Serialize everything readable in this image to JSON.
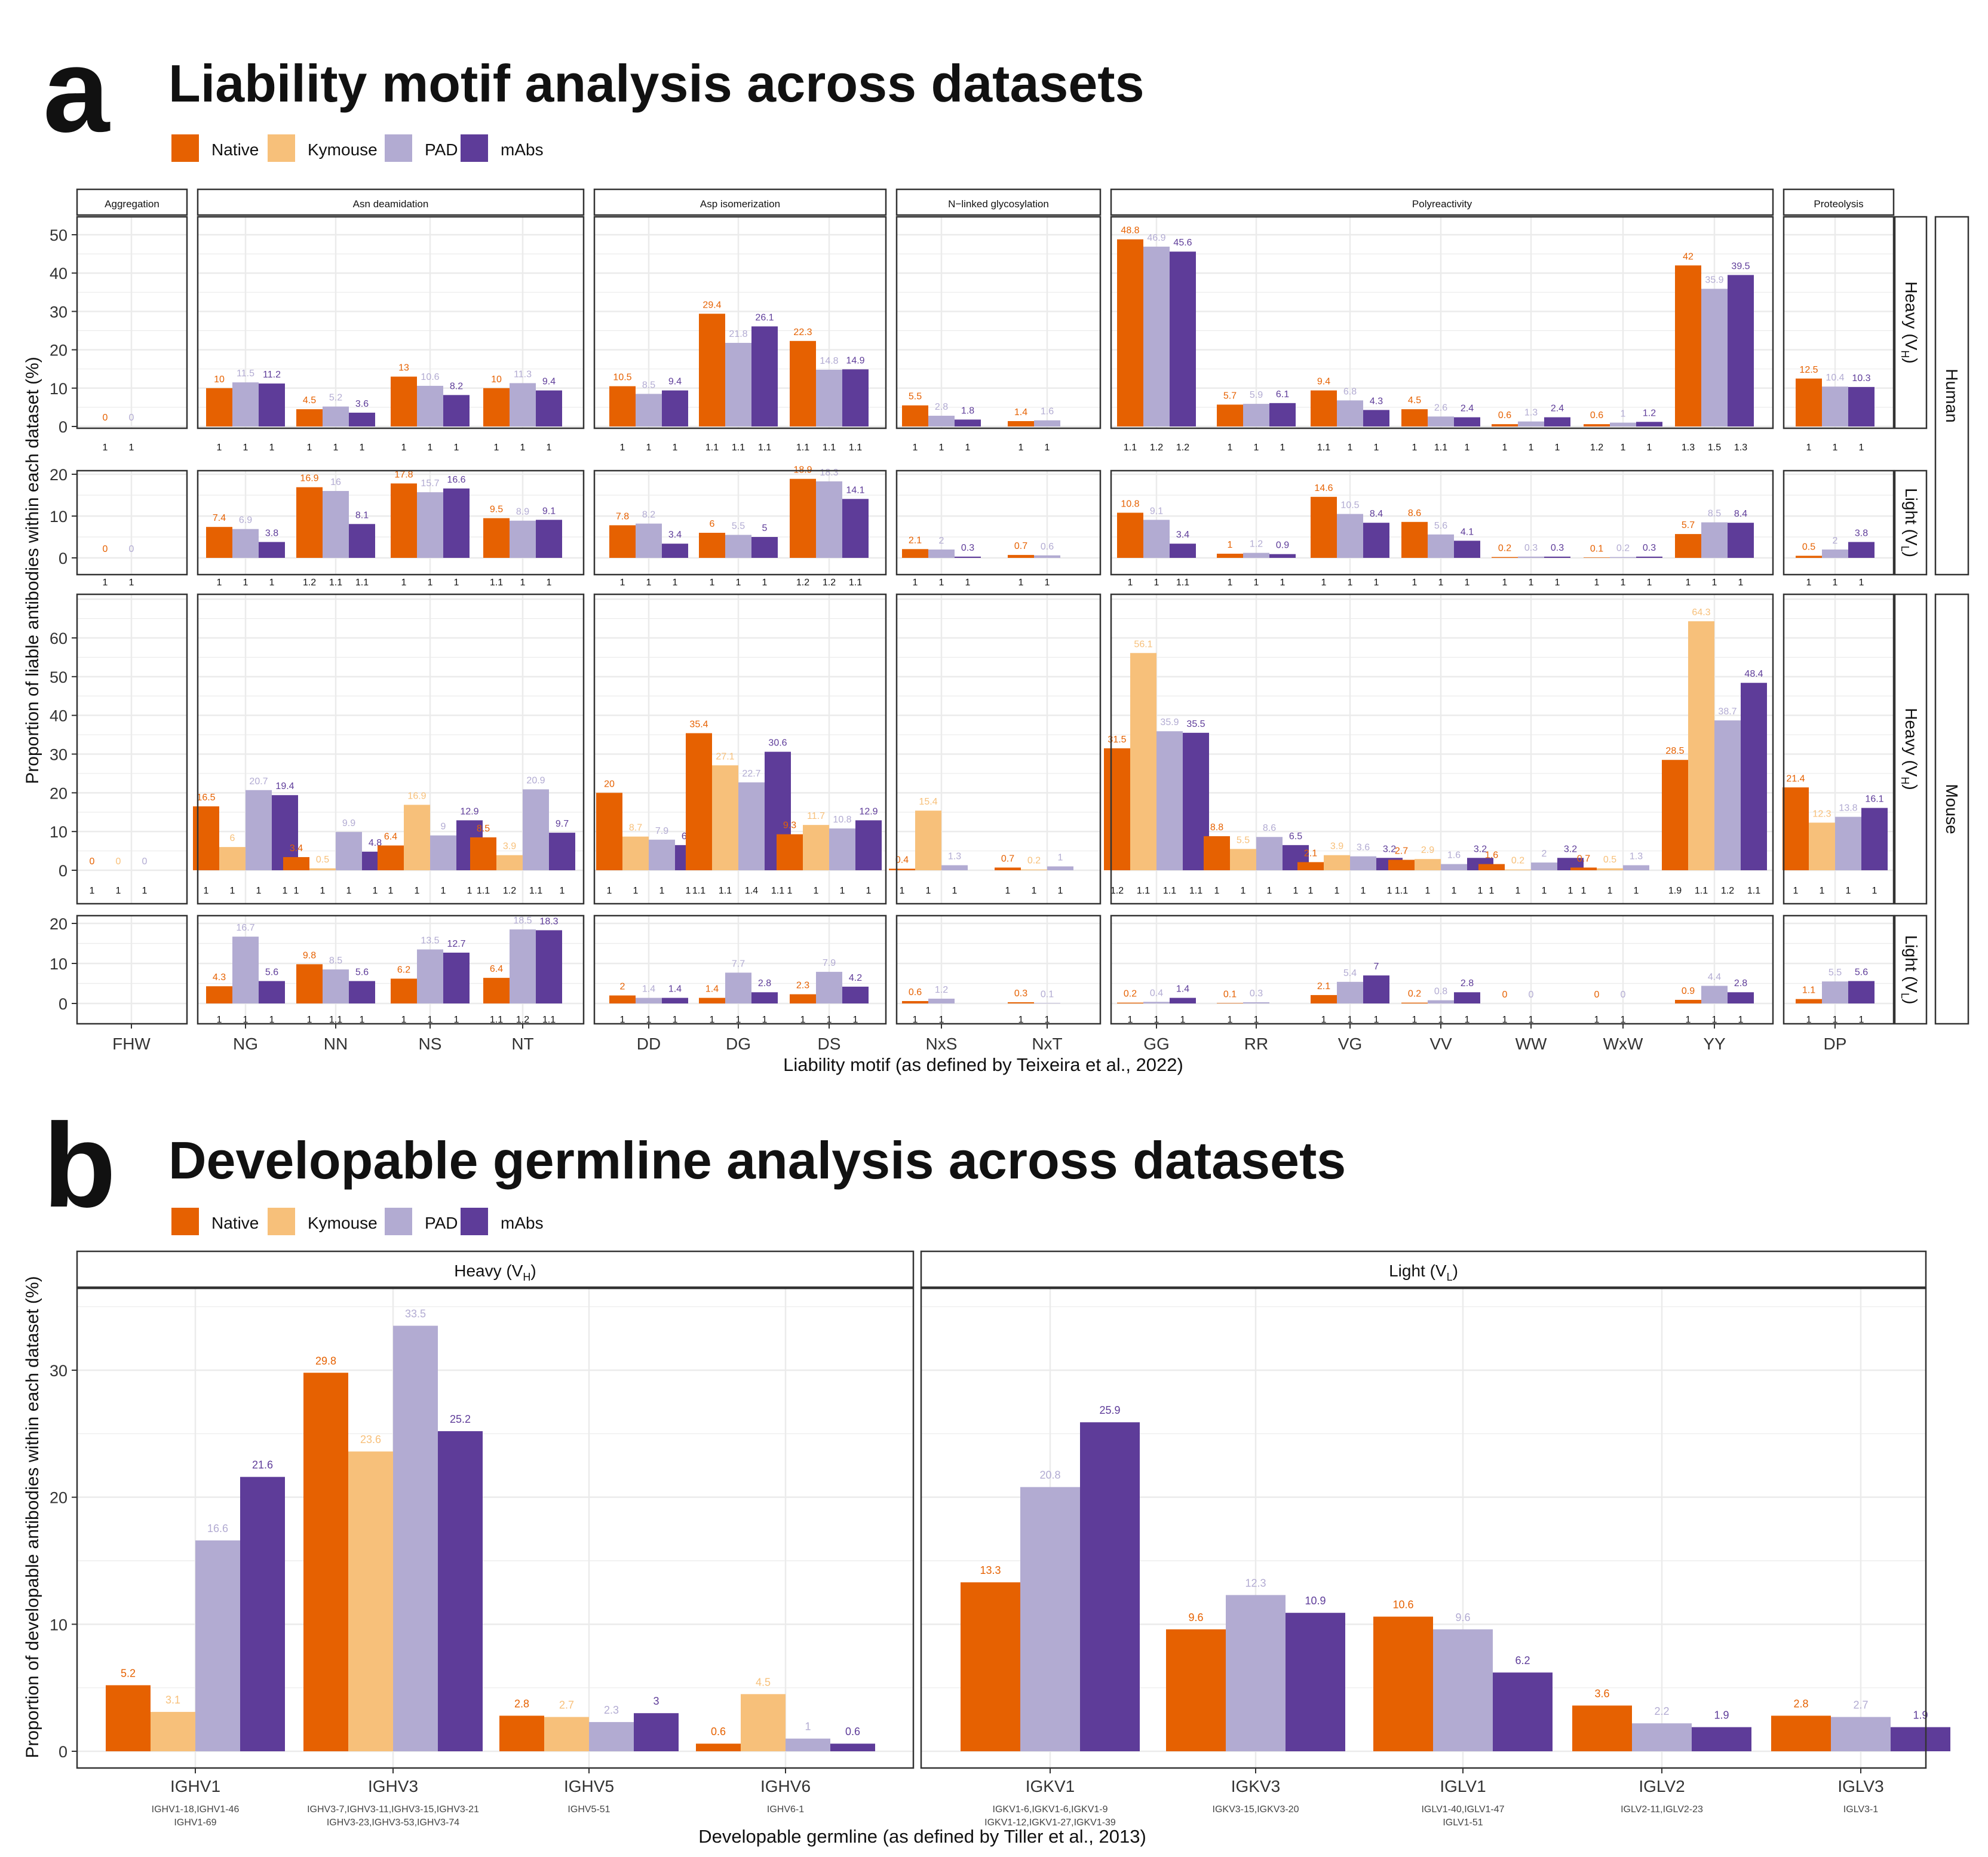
{
  "colors": {
    "native": "#E66101",
    "kymouse": "#F7C07A",
    "pad": "#B2ABD2",
    "mabs": "#5E3C99",
    "grid": "#EBEBEB",
    "border": "#333333",
    "text": "#111111"
  },
  "panel_a": {
    "letter": "a",
    "title": "Liability motif analysis across datasets",
    "legend": [
      "Native",
      "Kymouse",
      "PAD",
      "mAbs"
    ],
    "ylabel": "Proportion of liable antibodies within each dataset (%)",
    "xlabel": "Liability motif (as defined by Teixeira et al., 2022)",
    "strip_labels": [
      "Aggregation",
      "Asn deamidation",
      "Asp isomerization",
      "N−linked glycosylation",
      "Polyreactivity",
      "Proteolysis"
    ],
    "row_strip_labels": [
      "Heavy (V",
      "Light (V",
      "Heavy (V",
      "Light (V"
    ],
    "row_strip_subs": [
      "H",
      "L",
      "H",
      "L"
    ],
    "species_labels": [
      "Human",
      "Mouse"
    ],
    "yticks": {
      "human_heavy": [
        "0",
        "10",
        "20",
        "30",
        "40",
        "50"
      ],
      "human_light": [
        "0",
        "10",
        "20"
      ],
      "mouse_heavy": [
        "0",
        "10",
        "20",
        "30",
        "40",
        "50",
        "60"
      ],
      "mouse_light": [
        "0",
        "10",
        "20"
      ]
    }
  },
  "panel_b": {
    "letter": "b",
    "title": "Developable germline analysis across datasets",
    "legend": [
      "Native",
      "Kymouse",
      "PAD",
      "mAbs"
    ],
    "ylabel": "Proportion of developable antibodies within each dataset (%)",
    "xlabel": "Developable germline (as defined by Tiller et al., 2013)",
    "facet_labels": [
      "Heavy (V",
      "Light (V"
    ],
    "facet_subs": [
      "H",
      "L"
    ],
    "yticks": [
      "0",
      "10",
      "20",
      "30"
    ]
  },
  "chart_data": [
    {
      "type": "bar",
      "title": "Liability motif analysis across datasets",
      "ylabel": "Proportion of liable antibodies within each dataset (%)",
      "xlabel": "Liability motif (as defined by Teixeira et al., 2022)",
      "facets": [
        {
          "label": "Aggregation",
          "motifs": [
            "FHW"
          ]
        },
        {
          "label": "Asn deamidation",
          "motifs": [
            "NG",
            "NN",
            "NS",
            "NT"
          ]
        },
        {
          "label": "Asp isomerization",
          "motifs": [
            "DD",
            "DG",
            "DS"
          ]
        },
        {
          "label": "N−linked glycosylation",
          "motifs": [
            "NxS",
            "NxT"
          ]
        },
        {
          "label": "Polyreactivity",
          "motifs": [
            "GG",
            "RR",
            "VG",
            "VV",
            "WW",
            "WxW",
            "YY"
          ]
        },
        {
          "label": "Proteolysis",
          "motifs": [
            "DP"
          ]
        }
      ],
      "rows": [
        {
          "species": "Human",
          "chain": "Heavy (VH)",
          "ylim": [
            0,
            55
          ],
          "series": [
            {
              "name": "Native",
              "values": [
                0,
                10,
                4.5,
                13,
                10,
                10.5,
                29.4,
                22.3,
                5.5,
                1.4,
                48.8,
                5.7,
                9.4,
                4.5,
                0.6,
                0.6,
                42,
                12.5
              ],
              "ratios": [
                "1",
                "1",
                "1",
                "1",
                "1",
                "1",
                "1.1",
                "1.1",
                "1",
                "1",
                "1.1",
                "1",
                "1.1",
                "1",
                "1",
                "1.2",
                "1.3",
                "1"
              ]
            },
            {
              "name": "PAD",
              "values": [
                0,
                11.5,
                5.2,
                10.6,
                11.3,
                8.5,
                21.8,
                14.8,
                2.8,
                1.6,
                46.9,
                5.9,
                6.8,
                2.6,
                1.3,
                1,
                35.9,
                10.4
              ],
              "ratios": [
                "1",
                "1",
                "1",
                "1",
                "1",
                "1",
                "1.1",
                "1.1",
                "1",
                "1",
                "1.2",
                "1",
                "1",
                "1.1",
                "1",
                "1",
                "1.5",
                "1"
              ]
            },
            {
              "name": "mAbs",
              "values": [
                null,
                11.2,
                3.6,
                8.2,
                9.4,
                9.4,
                26.1,
                14.9,
                1.8,
                null,
                45.6,
                6.1,
                4.3,
                2.4,
                2.4,
                1.2,
                39.5,
                10.3
              ],
              "ratios": [
                null,
                "1",
                "1",
                "1",
                "1",
                "1",
                "1.1",
                "1.1",
                "1",
                null,
                "1.2",
                "1",
                "1",
                "1",
                "1",
                "1",
                "1.3",
                "1"
              ]
            }
          ]
        },
        {
          "species": "Human",
          "chain": "Light (VL)",
          "ylim": [
            0,
            23
          ],
          "series": [
            {
              "name": "Native",
              "values": [
                0,
                7.4,
                16.9,
                17.8,
                9.5,
                7.8,
                6,
                18.9,
                2.1,
                0.7,
                10.8,
                1,
                14.6,
                8.6,
                0.2,
                0.1,
                5.7,
                0.5
              ],
              "ratios": [
                "1",
                "1",
                "1.2",
                "1",
                "1.1",
                "1",
                "1",
                "1.2",
                "1",
                "1",
                "1",
                "1",
                "1",
                "1",
                "1",
                "1",
                "1",
                "1"
              ]
            },
            {
              "name": "PAD",
              "values": [
                0,
                6.9,
                16,
                15.7,
                8.9,
                8.2,
                5.5,
                18.3,
                2,
                0.6,
                9.1,
                1.2,
                10.5,
                5.6,
                0.3,
                0.2,
                8.5,
                2
              ],
              "ratios": [
                "1",
                "1",
                "1.1",
                "1",
                "1",
                "1",
                "1",
                "1.2",
                "1",
                "1",
                "1",
                "1",
                "1",
                "1",
                "1",
                "1",
                "1",
                "1"
              ]
            },
            {
              "name": "mAbs",
              "values": [
                null,
                3.8,
                8.1,
                16.6,
                9.1,
                3.4,
                5,
                14.1,
                0.3,
                null,
                3.4,
                0.9,
                8.4,
                4.1,
                0.3,
                0.3,
                8.4,
                3.8
              ],
              "ratios": [
                null,
                "1",
                "1.1",
                "1",
                "1",
                "1",
                "1",
                "1.1",
                "1",
                null,
                "1.1",
                "1",
                "1",
                "1",
                "1",
                "1",
                "1",
                "1"
              ]
            }
          ]
        },
        {
          "species": "Mouse",
          "chain": "Heavy (VH)",
          "ylim": [
            0,
            71
          ],
          "series": [
            {
              "name": "Native",
              "values": [
                0,
                16.5,
                3.4,
                6.4,
                8.5,
                20,
                35.4,
                9.3,
                0.4,
                0.7,
                31.5,
                8.8,
                2.1,
                2.7,
                1.6,
                0.7,
                28.5,
                21.4
              ],
              "ratios": [
                "1",
                "1",
                "1",
                "1",
                "1.1",
                "1",
                "1.1",
                "1",
                "1",
                "1",
                "1.2",
                "1",
                "1",
                "1.1",
                "1",
                "1",
                "1.9",
                "1"
              ]
            },
            {
              "name": "Kymouse",
              "values": [
                0,
                6,
                0.5,
                16.9,
                3.9,
                8.7,
                27.1,
                11.7,
                15.4,
                0.2,
                56.1,
                5.5,
                3.9,
                2.9,
                0.2,
                0.5,
                64.3,
                12.3
              ],
              "ratios": [
                "1",
                "1",
                "1",
                "1",
                "1.2",
                "1",
                "1.1",
                "1",
                "1",
                "1",
                "1.1",
                "1",
                "1",
                "1",
                "1",
                "1",
                "1.1",
                "1"
              ]
            },
            {
              "name": "PAD",
              "values": [
                0,
                20.7,
                9.9,
                9,
                20.9,
                7.9,
                22.7,
                10.8,
                1.3,
                1,
                35.9,
                8.6,
                3.6,
                1.6,
                2,
                1.3,
                38.7,
                13.8
              ],
              "ratios": [
                "1",
                "1",
                "1",
                "1",
                "1.1",
                "1",
                "1.4",
                "1",
                "1",
                "1",
                "1.1",
                "1",
                "1",
                "1",
                "1",
                "1",
                "1.2",
                "1"
              ]
            },
            {
              "name": "mAbs",
              "values": [
                null,
                19.4,
                4.8,
                12.9,
                9.7,
                6.5,
                30.6,
                12.9,
                null,
                null,
                35.5,
                6.5,
                3.2,
                3.2,
                3.2,
                null,
                48.4,
                16.1
              ],
              "ratios": [
                null,
                "1",
                "1",
                "1",
                "1",
                "1",
                "1.1",
                "1",
                null,
                null,
                "1.1",
                "1",
                "1",
                "1",
                "1",
                null,
                "1.1",
                "1"
              ]
            }
          ]
        },
        {
          "species": "Mouse",
          "chain": "Light (VL)",
          "ylim": [
            0,
            23
          ],
          "series": [
            {
              "name": "Native",
              "values": [
                null,
                4.3,
                9.8,
                6.2,
                6.4,
                2,
                1.4,
                2.3,
                0.6,
                0.3,
                0.2,
                0.1,
                2.1,
                0.2,
                0,
                0,
                0.9,
                1.1
              ],
              "ratios": [
                null,
                "1",
                "1",
                "1",
                "1.1",
                "1",
                "1",
                "1",
                "1",
                "1",
                "1",
                "1",
                "1",
                "1",
                "1",
                "1",
                "1",
                "1"
              ]
            },
            {
              "name": "PAD",
              "values": [
                null,
                16.7,
                8.5,
                13.5,
                18.5,
                1.4,
                7.7,
                7.9,
                1.2,
                0.1,
                0.4,
                0.3,
                5.4,
                0.8,
                0,
                0,
                4.4,
                5.5
              ],
              "ratios": [
                null,
                "1",
                "1.1",
                "1",
                "1.2",
                "1",
                "1",
                "1",
                "1",
                "1",
                "1",
                "1",
                "1",
                "1",
                "1",
                "1",
                "1",
                "1"
              ]
            },
            {
              "name": "mAbs",
              "values": [
                null,
                5.6,
                5.6,
                12.7,
                18.3,
                1.4,
                2.8,
                4.2,
                null,
                null,
                1.4,
                null,
                7,
                2.8,
                null,
                null,
                2.8,
                5.6
              ],
              "ratios": [
                null,
                "1",
                "1",
                "1",
                "1.1",
                "1",
                "1",
                "1",
                null,
                null,
                "1",
                null,
                "1",
                "1",
                null,
                null,
                "1",
                "1"
              ]
            }
          ]
        }
      ]
    },
    {
      "type": "bar",
      "title": "Developable germline analysis across datasets",
      "ylabel": "Proportion of developable antibodies within each dataset (%)",
      "xlabel": "Developable germline (as defined by Tiller et al., 2013)",
      "ylim": [
        0,
        36.5
      ],
      "facets": [
        {
          "label": "Heavy (VH)",
          "categories": [
            "IGHV1",
            "IGHV3",
            "IGHV5",
            "IGHV6"
          ],
          "sublabels": [
            [
              "IGHV1-18,IGHV1-46",
              "IGHV1-69"
            ],
            [
              "IGHV3-7,IGHV3-11,IGHV3-15,IGHV3-21",
              "IGHV3-23,IGHV3-53,IGHV3-74"
            ],
            [
              "IGHV5-51"
            ],
            [
              "IGHV6-1"
            ]
          ],
          "series": [
            {
              "name": "Native",
              "values": [
                5.2,
                29.8,
                2.8,
                0.6
              ]
            },
            {
              "name": "Kymouse",
              "values": [
                3.1,
                23.6,
                2.7,
                4.5
              ]
            },
            {
              "name": "PAD",
              "values": [
                16.6,
                33.5,
                2.3,
                1
              ]
            },
            {
              "name": "mAbs",
              "values": [
                21.6,
                25.2,
                3,
                0.6
              ]
            }
          ]
        },
        {
          "label": "Light (VL)",
          "categories": [
            "IGKV1",
            "IGKV3",
            "IGLV1",
            "IGLV2",
            "IGLV3"
          ],
          "sublabels": [
            [
              "IGKV1-6,IGKV1-6,IGKV1-9",
              "IGKV1-12,IGKV1-27,IGKV1-39"
            ],
            [
              "IGKV3-15,IGKV3-20"
            ],
            [
              "IGLV1-40,IGLV1-47",
              "IGLV1-51"
            ],
            [
              "IGLV2-11,IGLV2-23"
            ],
            [
              "IGLV3-1"
            ]
          ],
          "series": [
            {
              "name": "Native",
              "values": [
                13.3,
                9.6,
                10.6,
                3.6,
                2.8
              ]
            },
            {
              "name": "PAD",
              "values": [
                20.8,
                12.3,
                9.6,
                2.2,
                2.7
              ]
            },
            {
              "name": "mAbs",
              "values": [
                25.9,
                10.9,
                6.2,
                1.9,
                1.9
              ]
            }
          ]
        }
      ]
    }
  ]
}
